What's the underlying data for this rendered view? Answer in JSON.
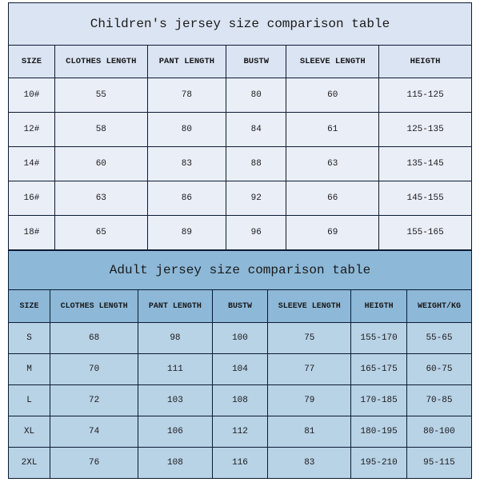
{
  "children": {
    "title": "Children's jersey size comparison table",
    "columns": [
      "SIZE",
      "CLOTHES LENGTH",
      "PANT LENGTH",
      "BUSTW",
      "SLEEVE LENGTH",
      "HEIGTH"
    ],
    "rows": [
      [
        "10#",
        "55",
        "78",
        "80",
        "60",
        "115-125"
      ],
      [
        "12#",
        "58",
        "80",
        "84",
        "61",
        "125-135"
      ],
      [
        "14#",
        "60",
        "83",
        "88",
        "63",
        "135-145"
      ],
      [
        "16#",
        "63",
        "86",
        "92",
        "66",
        "145-155"
      ],
      [
        "18#",
        "65",
        "89",
        "96",
        "69",
        "155-165"
      ]
    ],
    "colors": {
      "title_bg": "#dbe4f3",
      "header_bg": "#dbe4f3",
      "row_bg": "#eaeef7",
      "border": "#0b1b33"
    }
  },
  "adult": {
    "title": "Adult jersey size comparison table",
    "columns": [
      "SIZE",
      "CLOTHES LENGTH",
      "PANT LENGTH",
      "BUSTW",
      "SLEEVE LENGTH",
      "HEIGTH",
      "WEIGHT/KG"
    ],
    "rows": [
      [
        "S",
        "68",
        "98",
        "100",
        "75",
        "155-170",
        "55-65"
      ],
      [
        "M",
        "70",
        "111",
        "104",
        "77",
        "165-175",
        "60-75"
      ],
      [
        "L",
        "72",
        "103",
        "108",
        "79",
        "170-185",
        "70-85"
      ],
      [
        "XL",
        "74",
        "106",
        "112",
        "81",
        "180-195",
        "80-100"
      ],
      [
        "2XL",
        "76",
        "108",
        "116",
        "83",
        "195-210",
        "95-115"
      ]
    ],
    "colors": {
      "title_bg": "#8db8d8",
      "header_bg": "#8db8d8",
      "row_bg": "#b8d2e6",
      "border": "#0b1b33"
    }
  }
}
